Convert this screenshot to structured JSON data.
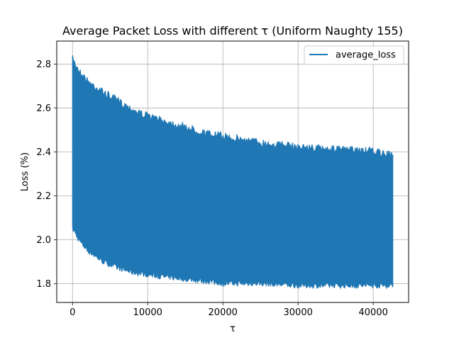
{
  "chart_data": {
    "type": "line",
    "title": "Average Packet Loss with different τ (Uniform Naughty 155)",
    "xlabel": "τ",
    "ylabel": "Loss (%)",
    "xlim": [
      -2100,
      44700
    ],
    "ylim": [
      1.715,
      2.905
    ],
    "xticks": [
      0,
      10000,
      20000,
      30000,
      40000
    ],
    "yticks": [
      1.8,
      2.0,
      2.2,
      2.4,
      2.6,
      2.8
    ],
    "xtick_labels": [
      "0",
      "10000",
      "20000",
      "30000",
      "40000"
    ],
    "ytick_labels": [
      "1.8",
      "2.0",
      "2.2",
      "2.4",
      "2.6",
      "2.8"
    ],
    "grid": true,
    "legend_position": "top-right",
    "series": [
      {
        "name": "average_loss",
        "color": "#1f77b4",
        "x_range": [
          0,
          42600
        ],
        "upper_envelope": {
          "x": [
            0,
            1000,
            2000,
            4000,
            6000,
            8000,
            10000,
            12000,
            15000,
            18000,
            20000,
            25000,
            30000,
            35000,
            40000,
            42600
          ],
          "y": [
            2.84,
            2.78,
            2.74,
            2.69,
            2.65,
            2.61,
            2.58,
            2.56,
            2.53,
            2.5,
            2.49,
            2.46,
            2.44,
            2.43,
            2.42,
            2.4
          ]
        },
        "lower_envelope": {
          "x": [
            0,
            1000,
            2000,
            4000,
            6000,
            8000,
            10000,
            12000,
            15000,
            18000,
            20000,
            25000,
            30000,
            35000,
            40000,
            42600
          ],
          "y": [
            2.04,
            1.98,
            1.94,
            1.89,
            1.86,
            1.84,
            1.83,
            1.82,
            1.81,
            1.8,
            1.79,
            1.79,
            1.78,
            1.78,
            1.78,
            1.78
          ]
        }
      }
    ]
  }
}
